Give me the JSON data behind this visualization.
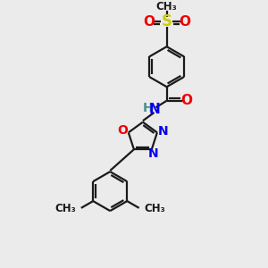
{
  "bg_color": "#ebebeb",
  "atom_colors": {
    "C": "#1a1a1a",
    "N": "#0000ee",
    "O": "#ee0000",
    "S": "#cccc00",
    "H": "#4a9090",
    "Me": "#1a1a1a"
  },
  "bond_color": "#1a1a1a",
  "bond_width": 1.6,
  "figsize": [
    3.0,
    3.0
  ],
  "dpi": 100,
  "xlim": [
    0,
    10
  ],
  "ylim": [
    0,
    10.5
  ]
}
